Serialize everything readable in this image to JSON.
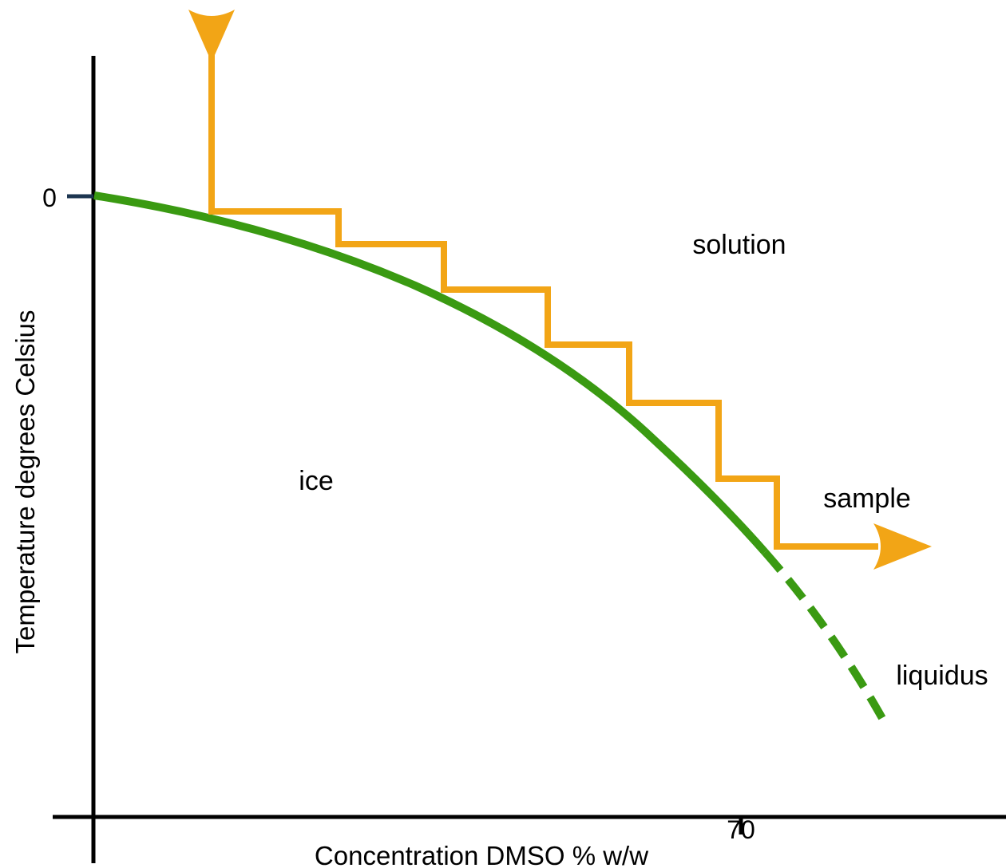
{
  "diagram": {
    "x_axis_label": "Concentration DMSO % w/w",
    "y_axis_label": "Temperature degrees Celsius",
    "y_tick_label": "0",
    "x_tick_label": "70",
    "regions": {
      "solution": "solution",
      "ice": "ice"
    },
    "path_label": "sample",
    "curve_label": "liquidus",
    "colors": {
      "liquidus_curve": "#3a9a12",
      "sample_path": "#f2a516",
      "axes": "#000000",
      "zero_tick": "#1c3550"
    }
  }
}
